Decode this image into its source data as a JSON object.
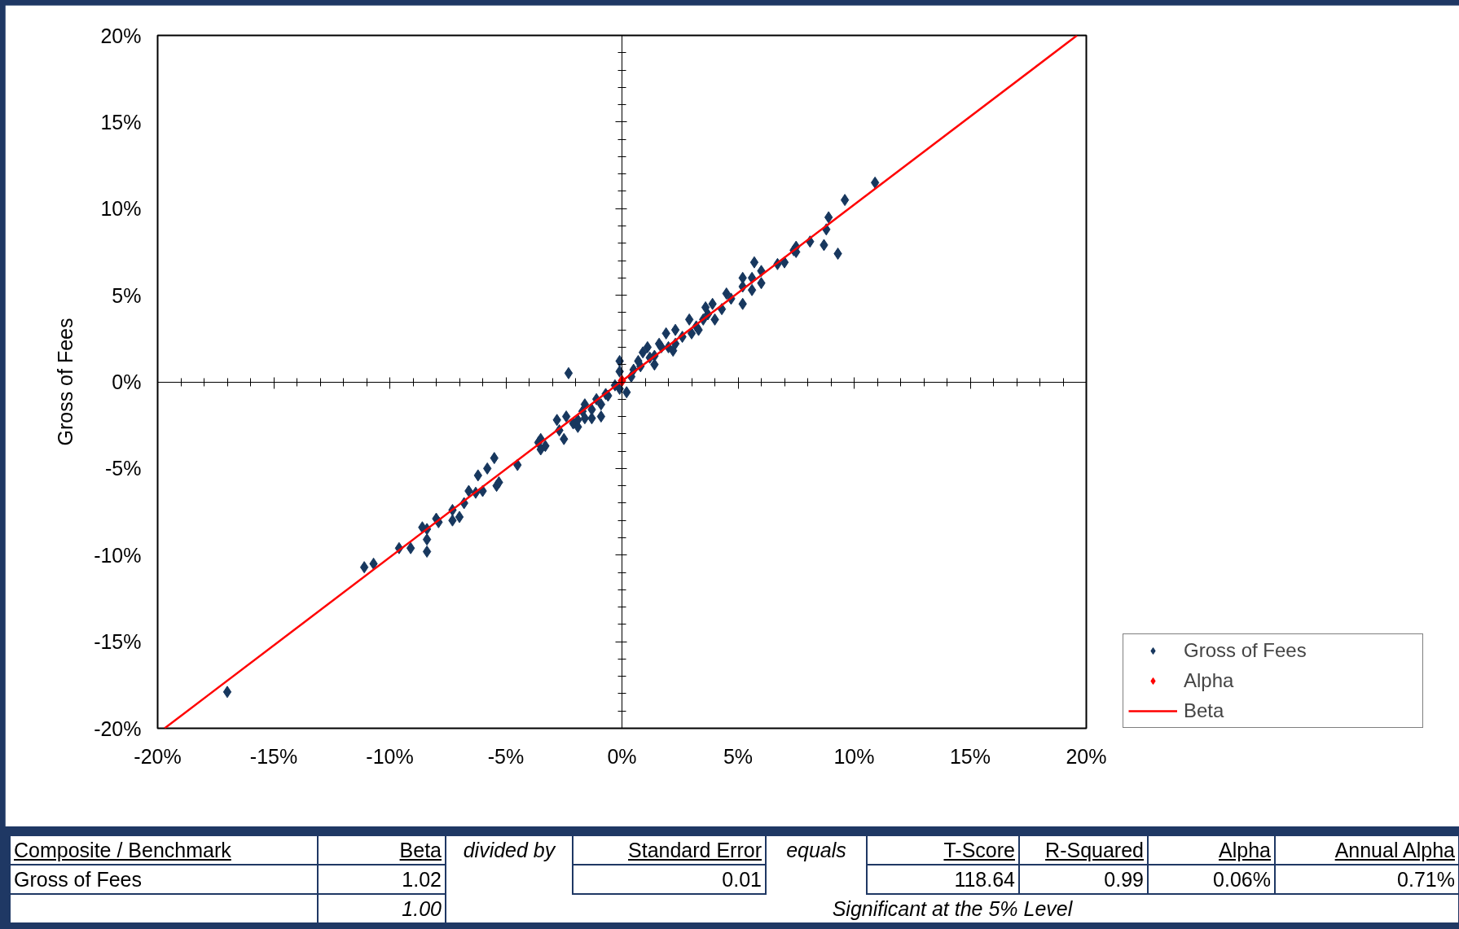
{
  "chart_data": {
    "type": "scatter",
    "ylabel": "Gross of Fees",
    "legend": "bottom right",
    "xlim": [
      -20,
      20
    ],
    "ylim": [
      -20,
      20
    ],
    "xticks": [
      {
        "value": -20,
        "label": "-20%"
      },
      {
        "value": -19,
        "label": null
      },
      {
        "value": -18,
        "label": null
      },
      {
        "value": -17,
        "label": null
      },
      {
        "value": -16,
        "label": null
      },
      {
        "value": -15,
        "label": "-15%"
      },
      {
        "value": -14,
        "label": null
      },
      {
        "value": -13,
        "label": null
      },
      {
        "value": -12,
        "label": null
      },
      {
        "value": -11,
        "label": null
      },
      {
        "value": -10,
        "label": "-10%"
      },
      {
        "value": -9,
        "label": null
      },
      {
        "value": -8,
        "label": null
      },
      {
        "value": -7,
        "label": null
      },
      {
        "value": -6,
        "label": null
      },
      {
        "value": -5,
        "label": "-5%"
      },
      {
        "value": -4,
        "label": null
      },
      {
        "value": -3,
        "label": null
      },
      {
        "value": -2,
        "label": null
      },
      {
        "value": -1,
        "label": null
      },
      {
        "value": 0,
        "label": "0%"
      },
      {
        "value": 1,
        "label": null
      },
      {
        "value": 2,
        "label": null
      },
      {
        "value": 3,
        "label": null
      },
      {
        "value": 4,
        "label": null
      },
      {
        "value": 5,
        "label": "5%"
      },
      {
        "value": 6,
        "label": null
      },
      {
        "value": 7,
        "label": null
      },
      {
        "value": 8,
        "label": null
      },
      {
        "value": 9,
        "label": null
      },
      {
        "value": 10,
        "label": "10%"
      },
      {
        "value": 11,
        "label": null
      },
      {
        "value": 12,
        "label": null
      },
      {
        "value": 13,
        "label": null
      },
      {
        "value": 14,
        "label": null
      },
      {
        "value": 15,
        "label": "15%"
      },
      {
        "value": 16,
        "label": null
      },
      {
        "value": 17,
        "label": null
      },
      {
        "value": 18,
        "label": null
      },
      {
        "value": 19,
        "label": null
      },
      {
        "value": 20,
        "label": "20%"
      }
    ],
    "yticks": [
      {
        "value": -20,
        "label": "-20%"
      },
      {
        "value": -19,
        "label": null
      },
      {
        "value": -18,
        "label": null
      },
      {
        "value": -17,
        "label": null
      },
      {
        "value": -16,
        "label": null
      },
      {
        "value": -15,
        "label": "-15%"
      },
      {
        "value": -14,
        "label": null
      },
      {
        "value": -13,
        "label": null
      },
      {
        "value": -12,
        "label": null
      },
      {
        "value": -11,
        "label": null
      },
      {
        "value": -10,
        "label": "-10%"
      },
      {
        "value": -9,
        "label": null
      },
      {
        "value": -8,
        "label": null
      },
      {
        "value": -7,
        "label": null
      },
      {
        "value": -6,
        "label": null
      },
      {
        "value": -5,
        "label": "-5%"
      },
      {
        "value": -4,
        "label": null
      },
      {
        "value": -3,
        "label": null
      },
      {
        "value": -2,
        "label": null
      },
      {
        "value": -1,
        "label": null
      },
      {
        "value": 0,
        "label": "0%"
      },
      {
        "value": 1,
        "label": null
      },
      {
        "value": 2,
        "label": null
      },
      {
        "value": 3,
        "label": null
      },
      {
        "value": 4,
        "label": null
      },
      {
        "value": 5,
        "label": "5%"
      },
      {
        "value": 6,
        "label": null
      },
      {
        "value": 7,
        "label": null
      },
      {
        "value": 8,
        "label": null
      },
      {
        "value": 9,
        "label": null
      },
      {
        "value": 10,
        "label": "10%"
      },
      {
        "value": 11,
        "label": null
      },
      {
        "value": 12,
        "label": null
      },
      {
        "value": 13,
        "label": null
      },
      {
        "value": 14,
        "label": null
      },
      {
        "value": 15,
        "label": "15%"
      },
      {
        "value": 16,
        "label": null
      },
      {
        "value": 17,
        "label": null
      },
      {
        "value": 18,
        "label": null
      },
      {
        "value": 19,
        "label": null
      },
      {
        "value": 20,
        "label": "20%"
      }
    ],
    "series": [
      {
        "name": "Gross of Fees",
        "marker": "diamond",
        "color": "#17375e",
        "x": [
          -17.0,
          -11.1,
          -10.7,
          -9.6,
          -9.1,
          -8.4,
          -8.4,
          -8.6,
          -8.4,
          -8.0,
          -7.9,
          -7.3,
          -7.3,
          -7.0,
          -6.8,
          -6.6,
          -6.3,
          -6.0,
          -6.2,
          -5.8,
          -5.5,
          -5.4,
          -5.3,
          -4.5,
          -3.6,
          -3.5,
          -3.3,
          -3.5,
          -2.8,
          -2.7,
          -2.5,
          -2.4,
          -2.3,
          -2.1,
          -1.9,
          -1.9,
          -1.7,
          -1.6,
          -1.6,
          -1.3,
          -1.3,
          -1.1,
          -0.9,
          -0.9,
          -0.6,
          -0.7,
          -0.3,
          -0.1,
          -0.1,
          -0.1,
          0.2,
          0.4,
          0.5,
          0.7,
          0.8,
          0.9,
          1.1,
          1.2,
          1.4,
          1.4,
          1.6,
          1.7,
          1.9,
          2.0,
          2.2,
          2.3,
          2.3,
          2.6,
          2.9,
          3.0,
          3.2,
          3.3,
          3.5,
          3.6,
          3.7,
          3.9,
          4.0,
          4.3,
          4.5,
          4.7,
          5.2,
          5.2,
          5.2,
          5.6,
          5.6,
          5.7,
          6.0,
          6.0,
          6.7,
          7.0,
          7.4,
          7.5,
          8.1,
          7.5,
          8.7,
          8.8,
          8.9,
          9.3,
          9.6,
          10.9
        ],
        "values": [
          -17.9,
          -10.7,
          -10.5,
          -9.6,
          -9.6,
          -9.8,
          -9.1,
          -8.4,
          -8.5,
          -7.9,
          -8.1,
          -7.4,
          -8.0,
          -7.8,
          -7.0,
          -6.3,
          -6.4,
          -6.3,
          -5.4,
          -5.0,
          -4.4,
          -6.0,
          -5.8,
          -4.8,
          -3.5,
          -3.9,
          -3.7,
          -3.3,
          -2.2,
          -2.8,
          -3.3,
          -2.0,
          0.5,
          -2.4,
          -2.6,
          -2.2,
          -1.7,
          -1.3,
          -2.1,
          -2.1,
          -1.6,
          -1.0,
          -2.0,
          -1.3,
          -0.8,
          -0.7,
          -0.2,
          -0.4,
          1.2,
          0.6,
          -0.6,
          0.3,
          0.7,
          1.2,
          0.9,
          1.7,
          2.0,
          1.4,
          1.0,
          1.5,
          2.2,
          2.0,
          2.8,
          2.0,
          1.8,
          3.0,
          2.2,
          2.6,
          3.6,
          2.8,
          3.2,
          3.0,
          3.6,
          4.3,
          3.9,
          4.5,
          3.6,
          4.2,
          5.1,
          4.8,
          6.0,
          4.5,
          5.5,
          5.3,
          6.0,
          6.9,
          6.4,
          5.7,
          6.8,
          6.9,
          7.6,
          7.8,
          8.1,
          7.5,
          7.9,
          8.8,
          9.5,
          7.4,
          10.5,
          11.5
        ]
      },
      {
        "name": "Alpha",
        "marker": "diamond",
        "color": "#ff0000",
        "x": [
          0
        ],
        "values": [
          0.06
        ]
      },
      {
        "name": "Beta",
        "type": "line",
        "color": "#ff0000",
        "x": [
          -19.7,
          19.6
        ],
        "values": [
          -20,
          20
        ]
      }
    ],
    "annotations": [
      "Composite / Benchmark",
      "Beta",
      "divided by",
      "Standard Error",
      "equals",
      "T-Score",
      "R-Squared",
      "Alpha",
      "Annual Alpha",
      "Gross of Fees",
      "1.02",
      "0.01",
      "118.64",
      "0.99",
      "0.06%",
      "0.71%",
      "1.00",
      "Significant at the 5% Level"
    ]
  }
}
